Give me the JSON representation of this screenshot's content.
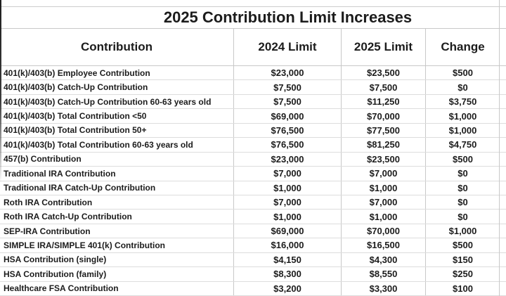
{
  "chart_data": {
    "type": "table",
    "title": "2025 Contribution Limit Increases",
    "columns": [
      "Contribution",
      "2024 Limit",
      "2025 Limit",
      "Change"
    ],
    "rows": [
      [
        "401(k)/403(b) Employee Contribution",
        "$23,000",
        "$23,500",
        "$500"
      ],
      [
        "401(k)/403(b) Catch-Up Contribution",
        "$7,500",
        "$7,500",
        "$0"
      ],
      [
        "401(k)/403(b) Catch-Up Contribution 60-63 years old",
        "$7,500",
        "$11,250",
        "$3,750"
      ],
      [
        "401(k)/403(b) Total Contribution <50",
        "$69,000",
        "$70,000",
        "$1,000"
      ],
      [
        "401(k)/403(b) Total Contribution 50+",
        "$76,500",
        "$77,500",
        "$1,000"
      ],
      [
        "401(k)/403(b) Total Contribution 60-63 years old",
        "$76,500",
        "$81,250",
        "$4,750"
      ],
      [
        "457(b) Contribution",
        "$23,000",
        "$23,500",
        "$500"
      ],
      [
        "Traditional IRA Contribution",
        "$7,000",
        "$7,000",
        "$0"
      ],
      [
        "Traditional IRA Catch-Up Contribution",
        "$1,000",
        "$1,000",
        "$0"
      ],
      [
        "Roth IRA Contribution",
        "$7,000",
        "$7,000",
        "$0"
      ],
      [
        "Roth IRA Catch-Up Contribution",
        "$1,000",
        "$1,000",
        "$0"
      ],
      [
        "SEP-IRA Contribution",
        "$69,000",
        "$70,000",
        "$1,000"
      ],
      [
        "SIMPLE IRA/SIMPLE 401(k) Contribution",
        "$16,000",
        "$16,500",
        "$500"
      ],
      [
        "HSA Contribution (single)",
        "$4,150",
        "$4,300",
        "$150"
      ],
      [
        "HSA Contribution (family)",
        "$8,300",
        "$8,550",
        "$250"
      ],
      [
        "Healthcare FSA Contribution",
        "$3,200",
        "$3,300",
        "$100"
      ]
    ],
    "layout_hints": {
      "grid": "on",
      "header_alignment": "center",
      "value_alignment": "center",
      "label_alignment": "left"
    }
  },
  "colors": {
    "background": "#ffffff",
    "text": "#1c1c1c",
    "grid_vertical": "#c8c8c8",
    "grid_horizontal": "#dddddd"
  }
}
